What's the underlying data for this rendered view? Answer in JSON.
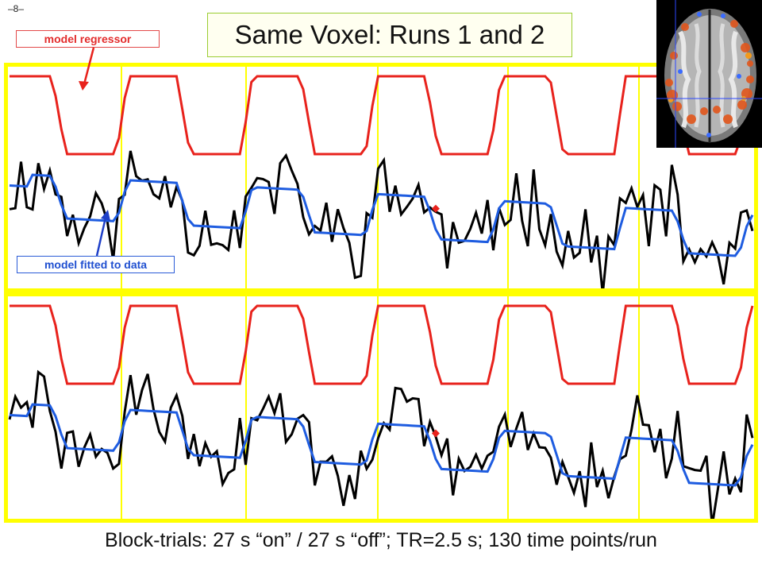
{
  "slide": {
    "page_number": "–8–",
    "title": "Same Voxel: Runs 1 and 2",
    "caption": "Block-trials: 27 s “on” / 27 s “off”; TR=2.5 s; 130 time points/run",
    "labels": {
      "model_regressor": "model regressor",
      "model_fitted": "model fitted to data"
    }
  },
  "colors": {
    "regressor": "#e8221c",
    "fitted": "#1e5ce0",
    "data": "#000000",
    "gridline": "#ffff00",
    "panel_border": "#ffff00"
  },
  "chart_data": [
    {
      "type": "line",
      "name": "run1",
      "grid": true,
      "series": [
        {
          "key": "regressor",
          "seed": 11
        },
        {
          "key": "fitted",
          "seed": 11
        },
        {
          "key": "data",
          "seed": 11
        }
      ]
    },
    {
      "type": "line",
      "name": "run2",
      "grid": true,
      "series": [
        {
          "key": "regressor",
          "seed": 29
        },
        {
          "key": "fitted",
          "seed": 29
        },
        {
          "key": "data",
          "seed": 29
        }
      ]
    }
  ]
}
